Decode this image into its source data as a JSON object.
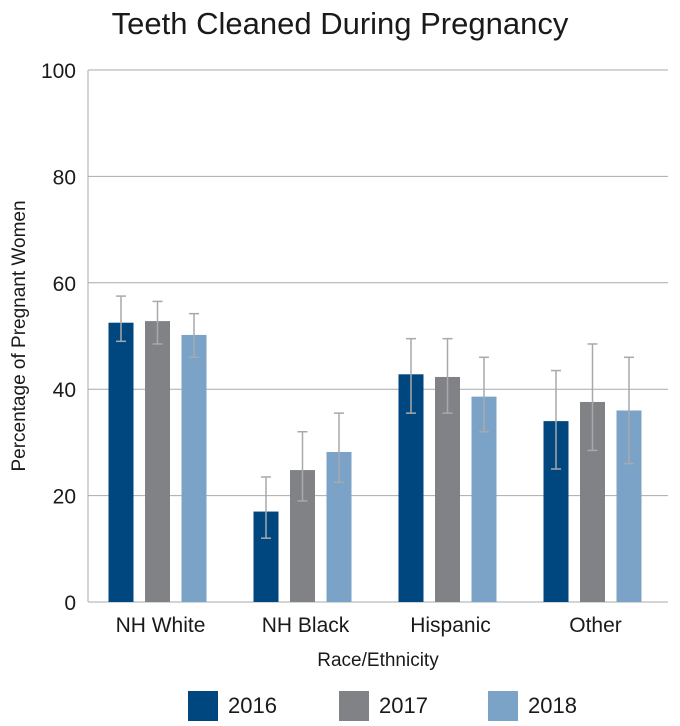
{
  "chart_data": {
    "type": "bar",
    "title": "Teeth Cleaned During Pregnancy",
    "xlabel": "Race/Ethnicity",
    "ylabel": "Percentage of Pregnant Women",
    "ylim": [
      0,
      100
    ],
    "yticks": [
      "0",
      "20",
      "40",
      "60",
      "80",
      "100"
    ],
    "categories": [
      "NH White",
      "NH Black",
      "Hispanic",
      "Other"
    ],
    "series": [
      {
        "name": "2016",
        "color": "#00467f",
        "values": [
          52.5,
          17.0,
          42.8,
          34.0
        ],
        "ci_low": [
          49.0,
          12.0,
          35.5,
          25.0
        ],
        "ci_high": [
          57.5,
          23.5,
          49.5,
          43.5
        ]
      },
      {
        "name": "2017",
        "color": "#808285",
        "values": [
          52.8,
          24.8,
          42.3,
          37.6
        ],
        "ci_low": [
          48.5,
          19.0,
          35.5,
          28.5
        ],
        "ci_high": [
          56.5,
          32.0,
          49.5,
          48.5
        ]
      },
      {
        "name": "2018",
        "color": "#7ba3c7",
        "values": [
          50.2,
          28.2,
          38.6,
          36.0
        ],
        "ci_low": [
          46.0,
          22.5,
          32.0,
          26.0
        ],
        "ci_high": [
          54.2,
          35.5,
          46.0,
          46.0
        ]
      }
    ],
    "grid": true,
    "legend_position": "bottom",
    "error_bars": true
  }
}
